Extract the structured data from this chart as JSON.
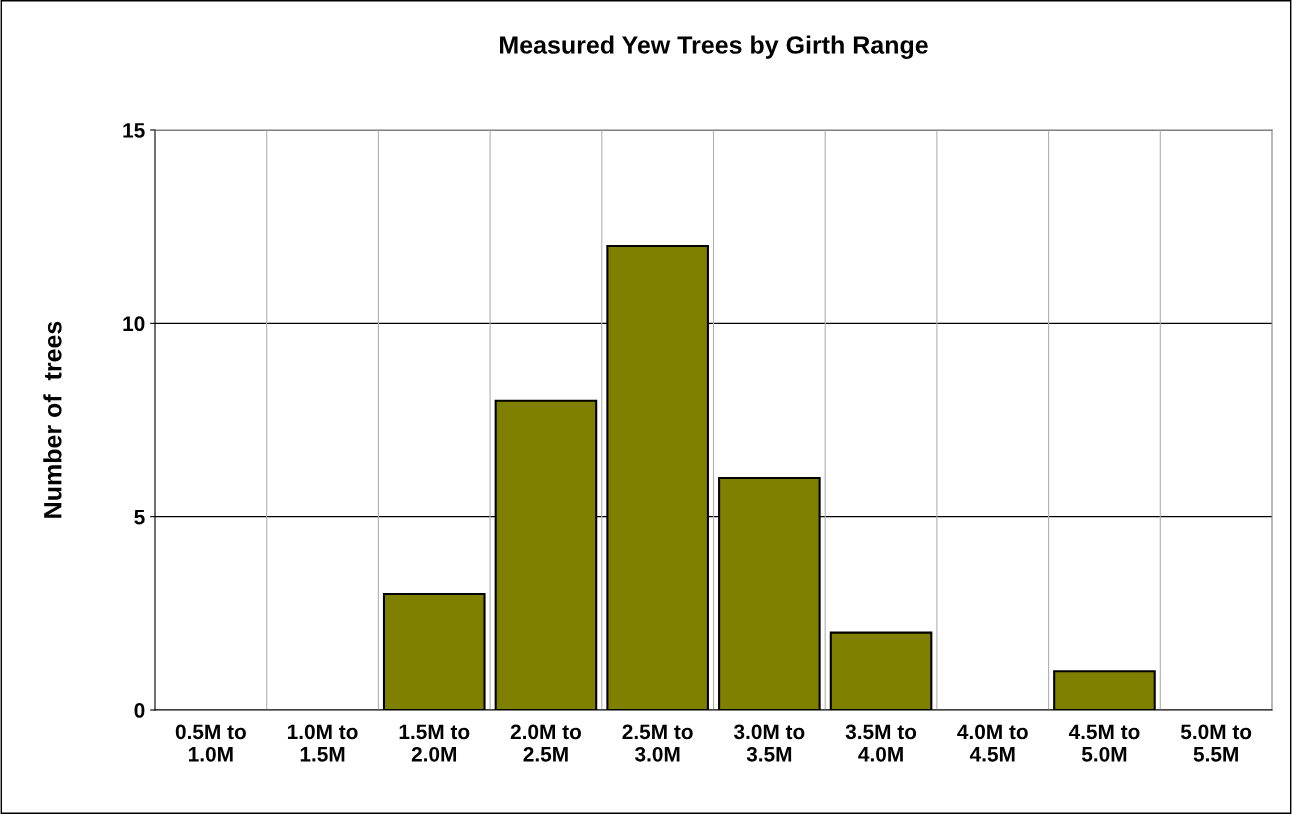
{
  "chart_data": {
    "type": "bar",
    "title": "Measured Yew Trees by Girth Range",
    "ylabel": "Number of  trees",
    "categories": [
      "0.5M to\n1.0M",
      "1.0M to\n1.5M",
      "1.5M to\n2.0M",
      "2.0M to\n2.5M",
      "2.5M to\n3.0M",
      "3.0M to\n3.5M",
      "3.5M to\n4.0M",
      "4.0M to\n4.5M",
      "4.5M to\n5.0M",
      "5.0M to\n5.5M"
    ],
    "values": [
      0,
      0,
      3,
      8,
      12,
      6,
      2,
      0,
      1,
      0
    ],
    "color": "#808000",
    "ylim": [
      0,
      15
    ],
    "yticks": [
      0,
      5,
      10,
      15
    ],
    "grid": true
  }
}
